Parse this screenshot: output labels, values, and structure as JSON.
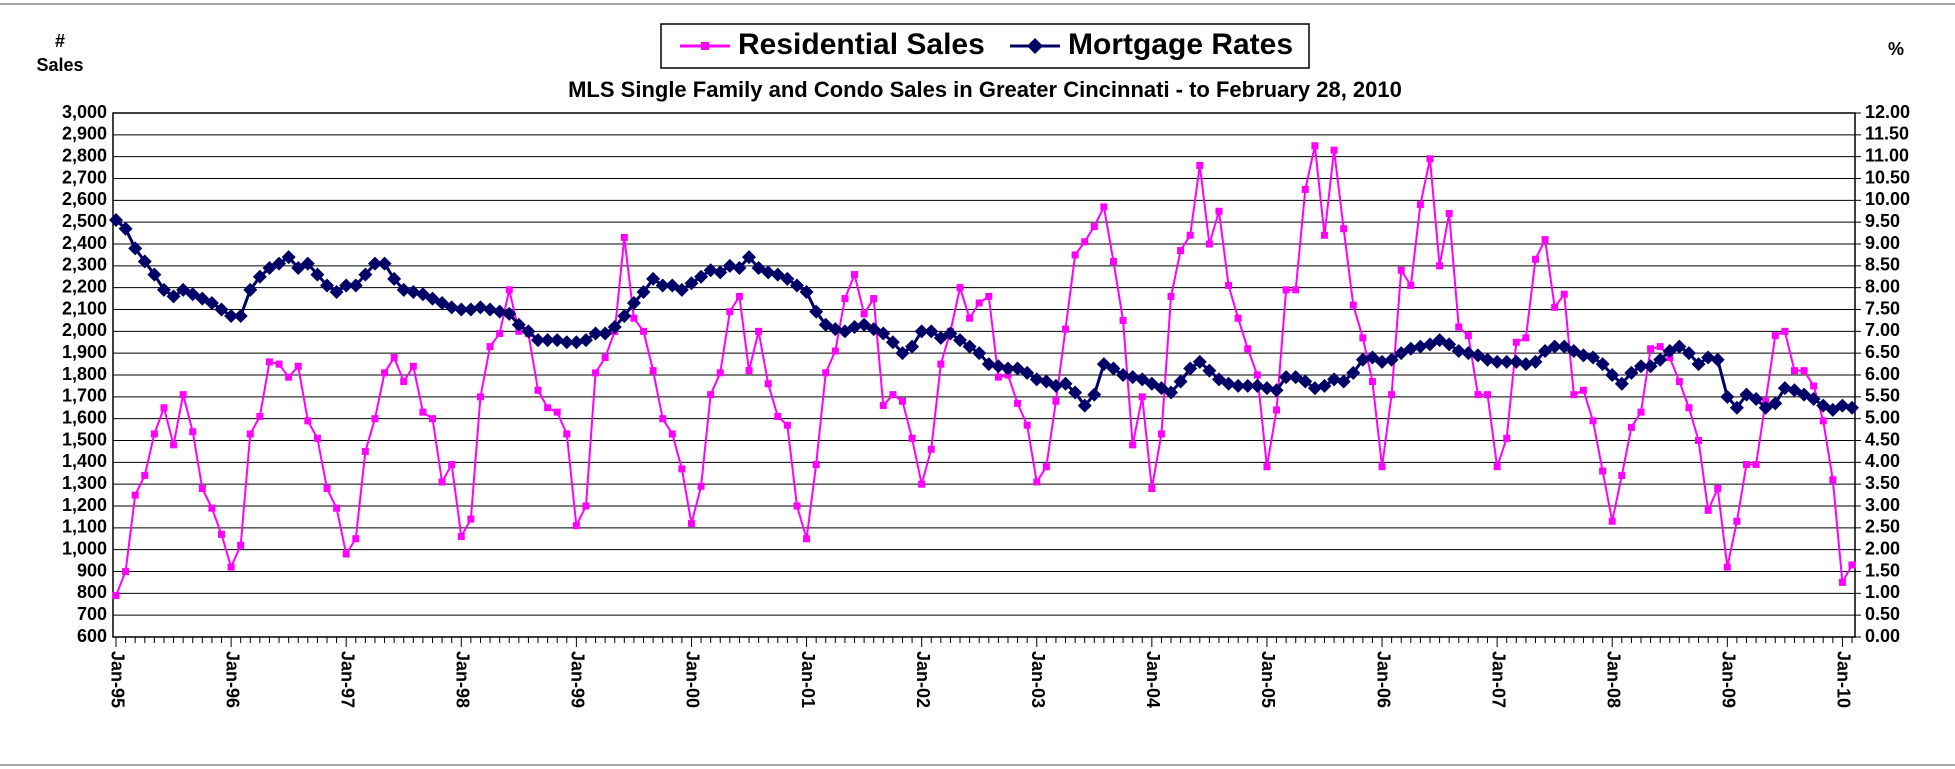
{
  "chart_data": {
    "type": "line",
    "title": "MLS Single Family and Condo Sales in Greater Cincinnati - to February 28, 2010",
    "y_axis_label": [
      "#",
      "Sales"
    ],
    "y2_axis_label": "%",
    "categories": [
      "Jan-95",
      null,
      null,
      null,
      null,
      null,
      null,
      null,
      null,
      null,
      null,
      null,
      "Jan-96",
      null,
      null,
      null,
      null,
      null,
      null,
      null,
      null,
      null,
      null,
      null,
      "Jan-97",
      null,
      null,
      null,
      null,
      null,
      null,
      null,
      null,
      null,
      null,
      null,
      "Jan-98",
      null,
      null,
      null,
      null,
      null,
      null,
      null,
      null,
      null,
      null,
      null,
      "Jan-99",
      null,
      null,
      null,
      null,
      null,
      null,
      null,
      null,
      null,
      null,
      null,
      "Jan-00",
      null,
      null,
      null,
      null,
      null,
      null,
      null,
      null,
      null,
      null,
      null,
      "Jan-01",
      null,
      null,
      null,
      null,
      null,
      null,
      null,
      null,
      null,
      null,
      null,
      "Jan-02",
      null,
      null,
      null,
      null,
      null,
      null,
      null,
      null,
      null,
      null,
      null,
      "Jan-03",
      null,
      null,
      null,
      null,
      null,
      null,
      null,
      null,
      null,
      null,
      null,
      "Jan-04",
      null,
      null,
      null,
      null,
      null,
      null,
      null,
      null,
      null,
      null,
      null,
      "Jan-05",
      null,
      null,
      null,
      null,
      null,
      null,
      null,
      null,
      null,
      null,
      null,
      "Jan-06",
      null,
      null,
      null,
      null,
      null,
      null,
      null,
      null,
      null,
      null,
      null,
      "Jan-07",
      null,
      null,
      null,
      null,
      null,
      null,
      null,
      null,
      null,
      null,
      null,
      "Jan-08",
      null,
      null,
      null,
      null,
      null,
      null,
      null,
      null,
      null,
      null,
      null,
      "Jan-09",
      null,
      null,
      null,
      null,
      null,
      null,
      null,
      null,
      null,
      null,
      null,
      "Jan-10",
      null
    ],
    "series": [
      {
        "name": "Residential Sales",
        "color": "#ff00ff",
        "marker": "square",
        "values": [
          790,
          900,
          1250,
          1340,
          1530,
          1650,
          1480,
          1710,
          1540,
          1280,
          1190,
          1070,
          920,
          1020,
          1530,
          1610,
          1860,
          1850,
          1790,
          1840,
          1590,
          1510,
          1280,
          1190,
          980,
          1050,
          1450,
          1600,
          1810,
          1880,
          1770,
          1840,
          1630,
          1600,
          1310,
          1390,
          1060,
          1140,
          1700,
          1930,
          1990,
          2190,
          2000,
          1990,
          1730,
          1650,
          1630,
          1530,
          1110,
          1200,
          1810,
          1880,
          2000,
          2430,
          2060,
          2000,
          1820,
          1600,
          1530,
          1370,
          1120,
          1290,
          1710,
          1810,
          2090,
          2160,
          1820,
          2000,
          1760,
          1610,
          1570,
          1200,
          1050,
          1390,
          1810,
          1910,
          2150,
          2260,
          2080,
          2150,
          1660,
          1710,
          1680,
          1510,
          1300,
          1460,
          1850,
          2000,
          2200,
          2060,
          2130,
          2160,
          1790,
          1800,
          1670,
          1570,
          1310,
          1380,
          1680,
          2010,
          2350,
          2410,
          2480,
          2570,
          2320,
          2050,
          1480,
          1700,
          1280,
          1530,
          2160,
          2370,
          2440,
          2760,
          2400,
          2550,
          2210,
          2060,
          1920,
          1800,
          1380,
          1640,
          2190,
          2190,
          2650,
          2850,
          2440,
          2830,
          2470,
          2120,
          1970,
          1770,
          1380,
          1710,
          2280,
          2210,
          2580,
          2790,
          2300,
          2540,
          2020,
          1980,
          1710,
          1710,
          1380,
          1510,
          1950,
          1970,
          2330,
          2420,
          2110,
          2170,
          1710,
          1730,
          1590,
          1360,
          1130,
          1340,
          1560,
          1630,
          1920,
          1930,
          1880,
          1770,
          1650,
          1500,
          1180,
          1280,
          920,
          1130,
          1390,
          1390,
          1680,
          1980,
          2000,
          1820,
          1820,
          1750,
          1590,
          1320,
          850,
          930
        ]
      },
      {
        "name": "Mortgage Rates",
        "color": "#000066",
        "marker": "diamond",
        "axis": "y2",
        "values": [
          9.55,
          9.35,
          8.9,
          8.6,
          8.3,
          7.95,
          7.8,
          7.95,
          7.85,
          7.75,
          7.65,
          7.5,
          7.35,
          7.35,
          7.95,
          8.25,
          8.45,
          8.55,
          8.7,
          8.45,
          8.55,
          8.3,
          8.05,
          7.9,
          8.05,
          8.05,
          8.3,
          8.55,
          8.55,
          8.2,
          7.95,
          7.9,
          7.85,
          7.75,
          7.65,
          7.55,
          7.5,
          7.5,
          7.55,
          7.5,
          7.45,
          7.4,
          7.15,
          7.0,
          6.8,
          6.8,
          6.8,
          6.75,
          6.75,
          6.8,
          6.95,
          6.95,
          7.1,
          7.35,
          7.65,
          7.9,
          8.2,
          8.05,
          8.05,
          7.95,
          8.1,
          8.25,
          8.4,
          8.35,
          8.5,
          8.45,
          8.7,
          8.45,
          8.35,
          8.3,
          8.2,
          8.05,
          7.9,
          7.45,
          7.15,
          7.05,
          7.0,
          7.1,
          7.15,
          7.05,
          6.95,
          6.75,
          6.5,
          6.65,
          7.0,
          7.0,
          6.85,
          6.95,
          6.8,
          6.65,
          6.5,
          6.25,
          6.2,
          6.15,
          6.15,
          6.05,
          5.9,
          5.85,
          5.75,
          5.8,
          5.6,
          5.3,
          5.55,
          6.25,
          6.15,
          6.0,
          5.95,
          5.9,
          5.8,
          5.7,
          5.6,
          5.85,
          6.15,
          6.3,
          6.1,
          5.9,
          5.8,
          5.75,
          5.75,
          5.75,
          5.7,
          5.65,
          5.95,
          5.95,
          5.85,
          5.7,
          5.75,
          5.9,
          5.85,
          6.05,
          6.35,
          6.4,
          6.3,
          6.35,
          6.5,
          6.6,
          6.65,
          6.7,
          6.8,
          6.7,
          6.55,
          6.5,
          6.45,
          6.35,
          6.3,
          6.3,
          6.3,
          6.25,
          6.3,
          6.55,
          6.65,
          6.65,
          6.55,
          6.45,
          6.4,
          6.25,
          6.0,
          5.8,
          6.05,
          6.2,
          6.2,
          6.35,
          6.55,
          6.65,
          6.5,
          6.25,
          6.4,
          6.35,
          5.5,
          5.25,
          5.55,
          5.45,
          5.25,
          5.35,
          5.7,
          5.65,
          5.55,
          5.45,
          5.3,
          5.2,
          5.3,
          5.25
        ]
      }
    ],
    "ylim": [
      600,
      3000
    ],
    "yticks": [
      600,
      700,
      800,
      900,
      {
        "value": 1000,
        "label": "1,000"
      },
      {
        "value": 1100,
        "label": "1,100"
      },
      {
        "value": 1200,
        "label": "1,200"
      },
      {
        "value": 1300,
        "label": "1,300"
      },
      {
        "value": 1400,
        "label": "1,400"
      },
      {
        "value": 1500,
        "label": "1,500"
      },
      {
        "value": 1600,
        "label": "1,600"
      },
      {
        "value": 1700,
        "label": "1,700"
      },
      {
        "value": 1800,
        "label": "1,800"
      },
      {
        "value": 1900,
        "label": "1,900"
      },
      {
        "value": 2000,
        "label": "2,000"
      },
      {
        "value": 2100,
        "label": "2,100"
      },
      {
        "value": 2200,
        "label": "2,200"
      },
      {
        "value": 2300,
        "label": "2,300"
      },
      {
        "value": 2400,
        "label": "2,400"
      },
      {
        "value": 2500,
        "label": "2,500"
      },
      {
        "value": 2600,
        "label": "2,600"
      },
      {
        "value": 2700,
        "label": "2,700"
      },
      {
        "value": 2800,
        "label": "2,800"
      },
      {
        "value": 2900,
        "label": "2,900"
      },
      {
        "value": 3000,
        "label": "3,000"
      }
    ],
    "y2lim": [
      0,
      12
    ],
    "y2ticks": [
      {
        "value": 0,
        "label": "0.00"
      },
      {
        "value": 0.5,
        "label": "0.50"
      },
      {
        "value": 1,
        "label": "1.00"
      },
      {
        "value": 1.5,
        "label": "1.50"
      },
      {
        "value": 2,
        "label": "2.00"
      },
      {
        "value": 2.5,
        "label": "2.50"
      },
      {
        "value": 3,
        "label": "3.00"
      },
      {
        "value": 3.5,
        "label": "3.50"
      },
      {
        "value": 4,
        "label": "4.00"
      },
      {
        "value": 4.5,
        "label": "4.50"
      },
      {
        "value": 5,
        "label": "5.00"
      },
      {
        "value": 5.5,
        "label": "5.50"
      },
      {
        "value": 6,
        "label": "6.00"
      },
      {
        "value": 6.5,
        "label": "6.50"
      },
      {
        "value": 7,
        "label": "7.00"
      },
      {
        "value": 7.5,
        "label": "7.50"
      },
      {
        "value": 8,
        "label": "8.00"
      },
      {
        "value": 8.5,
        "label": "8.50"
      },
      {
        "value": 9,
        "label": "9.00"
      },
      {
        "value": 9.5,
        "label": "9.50"
      },
      {
        "value": 10,
        "label": "10.00"
      },
      {
        "value": 10.5,
        "label": "10.50"
      },
      {
        "value": 11,
        "label": "11.00"
      },
      {
        "value": 11.5,
        "label": "11.50"
      },
      {
        "value": 12,
        "label": "12.00"
      }
    ],
    "grid": true,
    "legend": "top"
  }
}
